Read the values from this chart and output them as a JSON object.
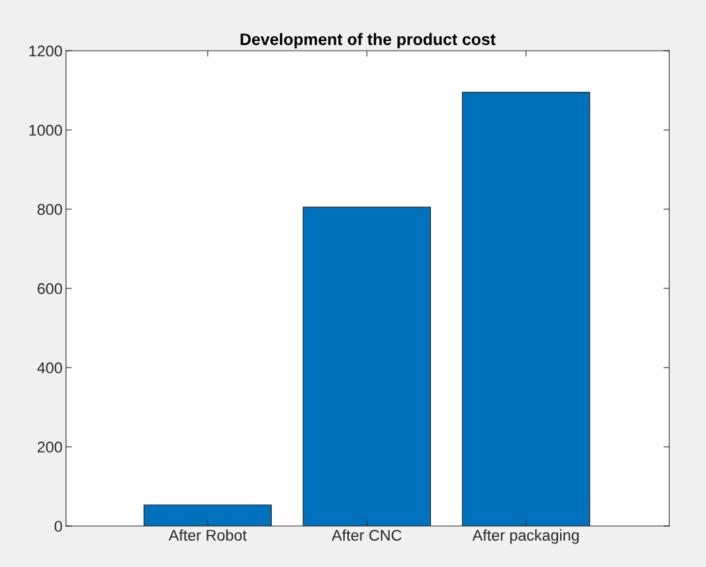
{
  "chart_data": {
    "type": "bar",
    "title": "Development of the product cost",
    "categories": [
      "After Robot",
      "After CNC",
      "After packaging"
    ],
    "values": [
      53,
      805,
      1095
    ],
    "color": "#0072bd",
    "ylim": [
      0,
      1200
    ],
    "yticks": [
      0,
      200,
      400,
      600,
      800,
      1000,
      1200
    ],
    "grid": false
  }
}
